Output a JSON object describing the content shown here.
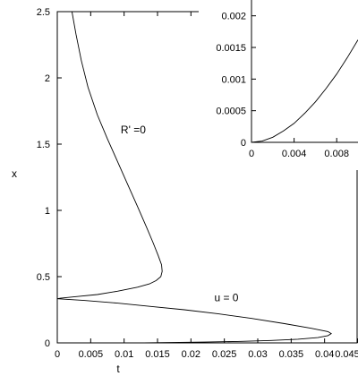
{
  "chart_data": [
    {
      "type": "line",
      "xlabel": "t",
      "ylabel": "x",
      "xlim": [
        0,
        0.045
      ],
      "ylim": [
        0,
        2.5
      ],
      "xticks": [
        "0",
        "0.005",
        "0.01",
        "0.015",
        "0.02",
        "0.025",
        "0.03",
        "0.035",
        "0.04",
        "0.045"
      ],
      "xtick_values": [
        0,
        0.005,
        0.01,
        0.015,
        0.02,
        0.025,
        0.03,
        0.035,
        0.04,
        0.045
      ],
      "yticks": [
        "0",
        "0.5",
        "1",
        "1.5",
        "2",
        "2.5"
      ],
      "ytick_values": [
        0,
        0.5,
        1,
        1.5,
        2,
        2.5
      ],
      "grid": false,
      "annotations": [
        {
          "text": "R' =0",
          "x": 0.0095,
          "y": 1.58
        },
        {
          "text": "u = 0",
          "x": 0.0235,
          "y": 0.315
        }
      ],
      "series": [
        {
          "x": [
            0.0022,
            0.0028,
            0.0036,
            0.0046,
            0.006,
            0.0075,
            0.009,
            0.0105,
            0.012,
            0.0133,
            0.0143,
            0.0151,
            0.0156,
            0.0157,
            0.0155,
            0.0148,
            0.0138,
            0.012,
            0.009,
            0.006,
            0.003,
            0.0005,
            0.0
          ],
          "y": [
            2.5,
            2.33,
            2.13,
            1.93,
            1.72,
            1.54,
            1.37,
            1.2,
            1.03,
            0.88,
            0.76,
            0.66,
            0.59,
            0.54,
            0.5,
            0.47,
            0.445,
            0.42,
            0.39,
            0.365,
            0.35,
            0.337,
            0.333
          ]
        },
        {
          "x": [
            0.0,
            0.004,
            0.009,
            0.014,
            0.019,
            0.024,
            0.029,
            0.034,
            0.038,
            0.0405,
            0.041,
            0.0405,
            0.039,
            0.036,
            0.032,
            0.027,
            0.022,
            0.017,
            0.013,
            0.011,
            0.0098
          ],
          "y": [
            0.333,
            0.32,
            0.3,
            0.275,
            0.25,
            0.22,
            0.185,
            0.145,
            0.11,
            0.085,
            0.07,
            0.055,
            0.04,
            0.028,
            0.018,
            0.011,
            0.006,
            0.003,
            0.001,
            0.0003,
            0.0
          ]
        }
      ]
    },
    {
      "type": "line",
      "xlim": [
        0,
        0.01
      ],
      "ylim": [
        0,
        0.00225
      ],
      "xticks": [
        "0",
        "0.004",
        "0.008"
      ],
      "xtick_values": [
        0,
        0.004,
        0.008
      ],
      "yticks": [
        "0",
        "0.0005",
        "0.001",
        "0.0015",
        "0.002"
      ],
      "ytick_values": [
        0,
        0.0005,
        0.001,
        0.0015,
        0.002
      ],
      "grid": false,
      "series": [
        {
          "x": [
            0,
            0.001,
            0.002,
            0.003,
            0.004,
            0.005,
            0.006,
            0.007,
            0.008,
            0.009,
            0.01
          ],
          "y": [
            0,
            2e-05,
            8e-05,
            0.00018,
            0.0003,
            0.00046,
            0.00064,
            0.00085,
            0.00108,
            0.00134,
            0.00162
          ]
        }
      ]
    }
  ]
}
